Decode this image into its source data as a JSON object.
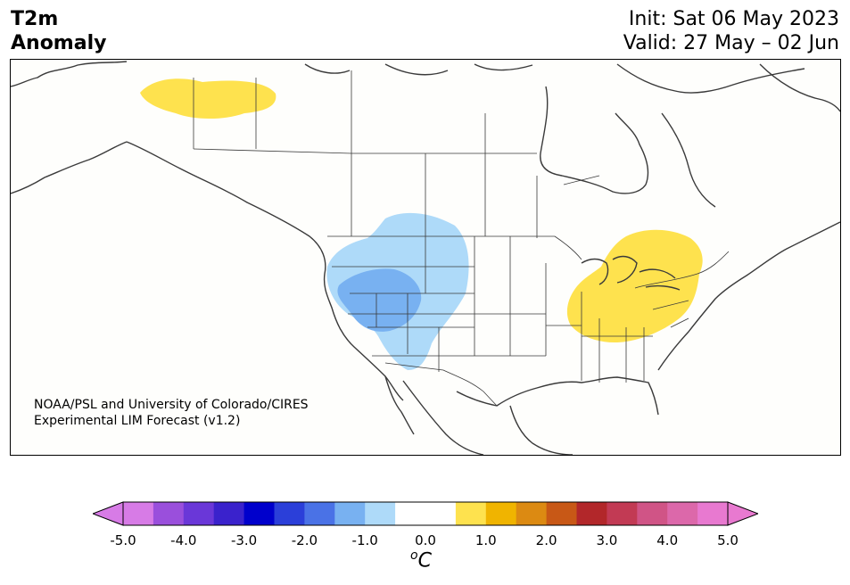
{
  "header": {
    "title_line1": "T2m",
    "title_line2": "Anomaly",
    "init": "Init: Sat 06 May 2023",
    "valid": "Valid: 27 May – 02 Jun"
  },
  "credit": {
    "line1": "NOAA/PSL and University of Colorado/CIRES",
    "line2": "Experimental LIM Forecast (v1.2)"
  },
  "colorbar": {
    "unit_base": "C",
    "unit_super": "o",
    "tick_labels": [
      "-5.0",
      "-4.0",
      "-3.0",
      "-2.0",
      "-1.0",
      "0.0",
      "1.0",
      "2.0",
      "3.0",
      "4.0",
      "5.0"
    ],
    "colors": [
      "#d77be6",
      "#9a4fdc",
      "#6a37d8",
      "#3a22cc",
      "#0000cc",
      "#2b3fd9",
      "#4a72e6",
      "#78b1f1",
      "#aedaf9",
      "#ffffff",
      "#ffffff",
      "#fee24e",
      "#f0b400",
      "#dc8a12",
      "#c85816",
      "#b2272a",
      "#c23a54",
      "#d05486",
      "#dc68aa",
      "#e879d0"
    ],
    "under_color": "#d77be6",
    "over_color": "#e879d0"
  },
  "anomaly_regions": [
    {
      "name": "northern-canada-warm",
      "sign": "warm",
      "level_color": "#fee24e"
    },
    {
      "name": "western-us-cool",
      "sign": "cool",
      "level_color": "#aedaf9"
    },
    {
      "name": "great-basin-cool-core",
      "sign": "cool",
      "level_color": "#78b1f1"
    },
    {
      "name": "great-lakes-ohio-valley-warm",
      "sign": "warm",
      "level_color": "#fee24e"
    }
  ]
}
